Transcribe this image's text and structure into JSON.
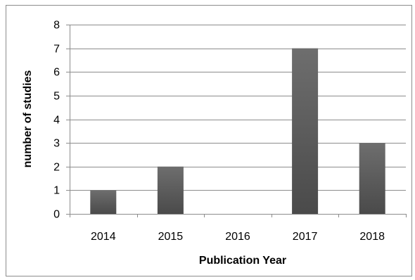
{
  "chart_data": {
    "type": "bar",
    "categories": [
      "2014",
      "2015",
      "2016",
      "2017",
      "2018"
    ],
    "values": [
      1,
      2,
      0,
      7,
      3
    ],
    "title": "",
    "xlabel": "Publication Year",
    "ylabel": "number of studies",
    "ylim": [
      0,
      8
    ],
    "yticks": [
      0,
      1,
      2,
      3,
      4,
      5,
      6,
      7,
      8
    ],
    "grid": true,
    "legend": "none",
    "bar_color": "#595959"
  }
}
